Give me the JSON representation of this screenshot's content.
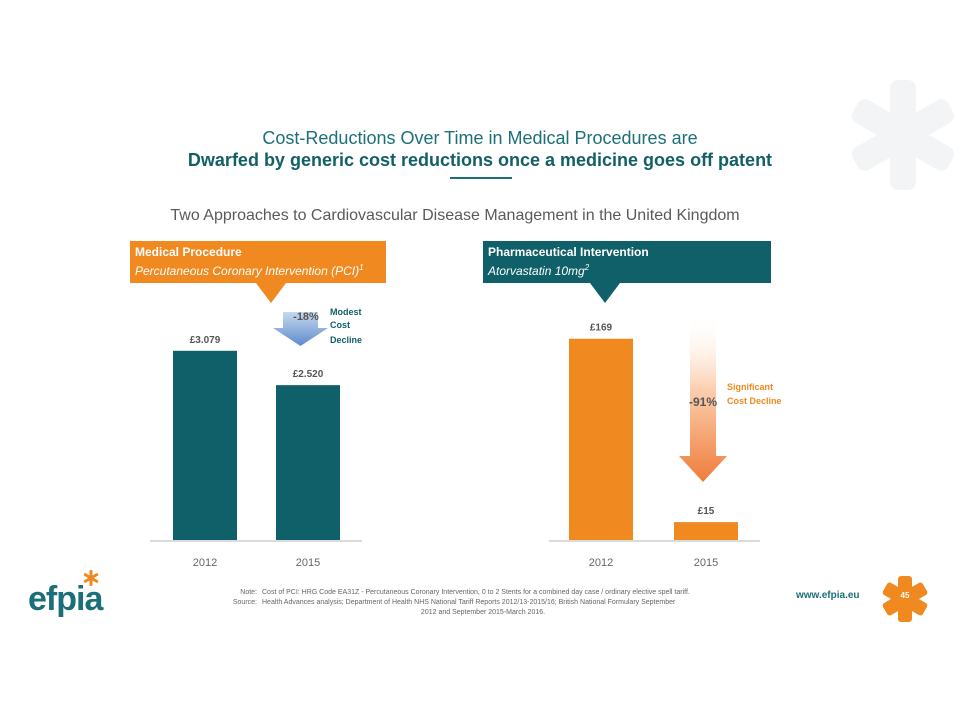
{
  "title_line1": "Cost-Reductions Over Time in Medical Procedures are",
  "title_line2": "Dwarfed by generic cost reductions once a medicine goes off patent",
  "subtitle": "Two Approaches to Cardiovascular Disease Management in the United Kingdom",
  "colors": {
    "teal": "#0f6069",
    "orange": "#f0891f",
    "blue_arrow": "#7fa6d8"
  },
  "left_panel": {
    "heading": "Medical Procedure",
    "subheading": "Percutaneous Coronary Intervention (PCI)",
    "sup": "1",
    "change_pct": "-18%",
    "change_note": [
      "Modest",
      "Cost",
      "Decline"
    ]
  },
  "right_panel": {
    "heading": "Pharmaceutical Intervention",
    "subheading": "Atorvastatin 10mg",
    "sup": "2",
    "change_pct": "-91%",
    "change_note": [
      "Significant",
      "Cost Decline"
    ]
  },
  "chart_data": [
    {
      "type": "bar",
      "categories": [
        "2012",
        "2015"
      ],
      "values": [
        3079,
        2520
      ],
      "value_labels": [
        "£3.079",
        "£2.520"
      ],
      "bar_color": "#0f6069",
      "ylim": [
        0,
        3450
      ]
    },
    {
      "type": "bar",
      "categories": [
        "2012",
        "2015"
      ],
      "values": [
        169,
        15
      ],
      "value_labels": [
        "£169",
        "£15"
      ],
      "bar_color": "#f0891f",
      "ylim": [
        0,
        178
      ]
    }
  ],
  "footer": {
    "logo": "efpia",
    "note_key": "Note:",
    "note_text": "Cost of PCI: HRG Code EA31Z - Percutaneous Coronary Intervention, 0 to 2 Stents for a combined day case / ordinary elective spell tariff.",
    "source_key": "Source:",
    "source_text": "Health Advances analysis; Department of Health NHS National Tariff Reports 2012/13-2015/16; British National Formulary September",
    "source_text_cont": "2012 and September 2015-March 2016.",
    "url": "www.efpia.eu",
    "page_number": "45"
  }
}
